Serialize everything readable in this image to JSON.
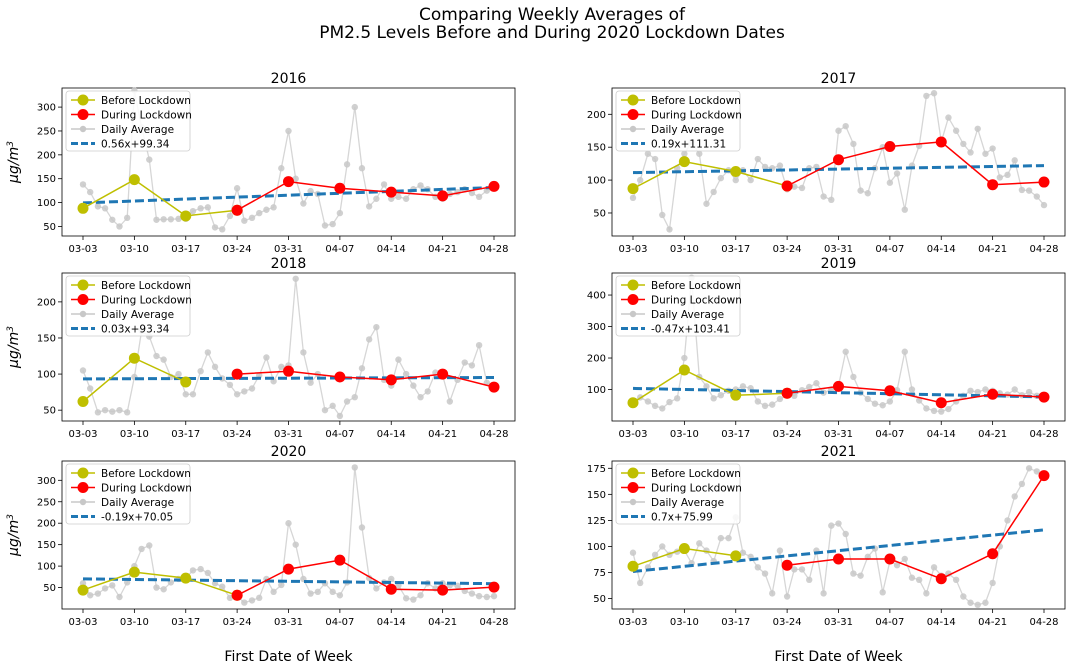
{
  "figure": {
    "title_line1": "Comparing Weekly Averages of",
    "title_line2": "PM2.5 Levels Before and During 2020 Lockdown Dates",
    "ylabel_main": "μg/m",
    "ylabel_sup": "3",
    "xlabel": "First Date of Week"
  },
  "colors": {
    "before": "#bfbf00",
    "during": "#ff0000",
    "daily": "#c8c8c8",
    "trend": "#1f77b4"
  },
  "chart_data": [
    {
      "type": "line",
      "title": "2016",
      "categories": [
        "03-03",
        "03-10",
        "03-17",
        "03-24",
        "03-31",
        "04-07",
        "04-14",
        "04-21",
        "04-28"
      ],
      "ylim": [
        30,
        340
      ],
      "yticks": [
        50,
        100,
        150,
        200,
        250,
        300
      ],
      "series": [
        {
          "name": "Before Lockdown",
          "x": [
            0,
            1,
            2,
            3
          ],
          "values": [
            88,
            148,
            72,
            84
          ]
        },
        {
          "name": "During Lockdown",
          "x": [
            3,
            4,
            5,
            6,
            7,
            8
          ],
          "values": [
            84,
            144,
            130,
            122,
            114,
            134
          ]
        },
        {
          "name": "Daily Average",
          "x": [
            0,
            0.14,
            0.29,
            0.43,
            0.57,
            0.71,
            0.86,
            1,
            1.14,
            1.29,
            1.43,
            1.57,
            1.71,
            1.86,
            2,
            2.14,
            2.29,
            2.43,
            2.57,
            2.71,
            2.86,
            3,
            3.14,
            3.29,
            3.43,
            3.57,
            3.71,
            3.86,
            4,
            4.14,
            4.29,
            4.43,
            4.57,
            4.71,
            4.86,
            5,
            5.14,
            5.29,
            5.43,
            5.57,
            5.71,
            5.86,
            6,
            6.14,
            6.29,
            6.43,
            6.57,
            6.71,
            6.86,
            7,
            7.14,
            7.29,
            7.43,
            7.57,
            7.71,
            7.86,
            8
          ],
          "values": [
            138,
            122,
            92,
            88,
            64,
            50,
            68,
            335,
            258,
            190,
            64,
            65,
            65,
            66,
            66,
            82,
            88,
            90,
            48,
            44,
            72,
            130,
            62,
            68,
            78,
            85,
            90,
            172,
            250,
            150,
            98,
            124,
            118,
            52,
            55,
            78,
            180,
            300,
            172,
            92,
            108,
            138,
            108,
            112,
            108,
            128,
            136,
            128,
            112,
            108,
            118,
            122,
            128,
            120,
            112,
            125,
            138
          ]
        },
        {
          "name": "0.56x+99.34",
          "x": [
            0,
            8
          ],
          "values": [
            99.34,
            131.6
          ]
        }
      ]
    },
    {
      "type": "line",
      "title": "2017",
      "categories": [
        "03-03",
        "03-10",
        "03-17",
        "03-24",
        "03-31",
        "04-07",
        "04-14",
        "04-21",
        "04-28"
      ],
      "ylim": [
        15,
        240
      ],
      "yticks": [
        50,
        100,
        150,
        200
      ],
      "series": [
        {
          "name": "Before Lockdown",
          "x": [
            0,
            1,
            2,
            3
          ],
          "values": [
            87,
            128,
            113,
            91
          ]
        },
        {
          "name": "During Lockdown",
          "x": [
            3,
            4,
            5,
            6,
            7,
            8
          ],
          "values": [
            91,
            131,
            151,
            158,
            93,
            97
          ]
        },
        {
          "name": "Daily Average",
          "x": [
            0,
            0.14,
            0.29,
            0.43,
            0.57,
            0.71,
            0.86,
            1,
            1.14,
            1.29,
            1.43,
            1.57,
            1.71,
            1.86,
            2,
            2.14,
            2.29,
            2.43,
            2.57,
            2.71,
            2.86,
            3,
            3.14,
            3.29,
            3.43,
            3.57,
            3.71,
            3.86,
            4,
            4.14,
            4.29,
            4.43,
            4.57,
            4.71,
            4.86,
            5,
            5.14,
            5.29,
            5.43,
            5.57,
            5.71,
            5.86,
            6,
            6.14,
            6.29,
            6.43,
            6.57,
            6.71,
            6.86,
            7,
            7.14,
            7.29,
            7.43,
            7.57,
            7.71,
            7.86,
            8
          ],
          "values": [
            73,
            100,
            140,
            132,
            47,
            25,
            118,
            140,
            158,
            140,
            64,
            82,
            103,
            115,
            100,
            115,
            100,
            132,
            120,
            118,
            122,
            86,
            90,
            88,
            118,
            120,
            75,
            70,
            175,
            182,
            155,
            84,
            80,
            118,
            150,
            96,
            110,
            55,
            122,
            152,
            228,
            232,
            158,
            195,
            175,
            155,
            142,
            178,
            140,
            148,
            104,
            108,
            130,
            85,
            84,
            75,
            62
          ]
        },
        {
          "name": "0.19x+111.31",
          "x": [
            0,
            8
          ],
          "values": [
            111.31,
            122.0
          ]
        }
      ]
    },
    {
      "type": "line",
      "title": "2018",
      "categories": [
        "03-03",
        "03-10",
        "03-17",
        "03-24",
        "03-31",
        "04-07",
        "04-14",
        "04-21",
        "04-28"
      ],
      "ylim": [
        35,
        240
      ],
      "yticks": [
        50,
        100,
        150,
        200
      ],
      "series": [
        {
          "name": "Before Lockdown",
          "x": [
            0,
            1,
            2
          ],
          "values": [
            62,
            122,
            89
          ]
        },
        {
          "name": "During Lockdown",
          "x": [
            3,
            4,
            5,
            6,
            7,
            8
          ],
          "values": [
            100,
            104,
            96,
            92,
            100,
            82
          ]
        },
        {
          "name": "Daily Average",
          "x": [
            0,
            0.14,
            0.29,
            0.43,
            0.57,
            0.71,
            0.86,
            1,
            1.14,
            1.29,
            1.43,
            1.57,
            1.71,
            1.86,
            2,
            2.14,
            2.29,
            2.43,
            2.57,
            2.71,
            2.86,
            3,
            3.14,
            3.29,
            3.43,
            3.57,
            3.71,
            3.86,
            4,
            4.14,
            4.29,
            4.43,
            4.57,
            4.71,
            4.86,
            5,
            5.14,
            5.29,
            5.43,
            5.57,
            5.71,
            5.86,
            6,
            6.14,
            6.29,
            6.43,
            6.57,
            6.71,
            6.86,
            7,
            7.14,
            7.29,
            7.43,
            7.57,
            7.71,
            7.86,
            8
          ],
          "values": [
            105,
            80,
            47,
            50,
            48,
            50,
            47,
            96,
            160,
            152,
            125,
            120,
            96,
            100,
            72,
            72,
            104,
            130,
            110,
            94,
            85,
            72,
            76,
            80,
            98,
            123,
            90,
            110,
            112,
            232,
            130,
            88,
            100,
            50,
            56,
            42,
            62,
            68,
            108,
            148,
            165,
            92,
            84,
            120,
            100,
            84,
            68,
            76,
            102,
            98,
            62,
            92,
            116,
            112,
            140,
            88,
            80
          ]
        },
        {
          "name": "0.03x+93.34",
          "x": [
            0,
            8
          ],
          "values": [
            93.34,
            95.2
          ]
        }
      ]
    },
    {
      "type": "line",
      "title": "2019",
      "categories": [
        "03-03",
        "03-10",
        "03-17",
        "03-24",
        "03-31",
        "04-07",
        "04-14",
        "04-21",
        "04-28"
      ],
      "ylim": [
        0,
        470
      ],
      "yticks": [
        100,
        200,
        300,
        400
      ],
      "series": [
        {
          "name": "Before Lockdown",
          "x": [
            0,
            1,
            2,
            3
          ],
          "values": [
            58,
            162,
            82,
            88
          ]
        },
        {
          "name": "During Lockdown",
          "x": [
            3,
            4,
            5,
            6,
            7,
            8
          ],
          "values": [
            88,
            110,
            96,
            58,
            85,
            76
          ]
        },
        {
          "name": "Daily Average",
          "x": [
            0,
            0.14,
            0.29,
            0.43,
            0.57,
            0.71,
            0.86,
            1,
            1.14,
            1.29,
            1.43,
            1.57,
            1.71,
            1.86,
            2,
            2.14,
            2.29,
            2.43,
            2.57,
            2.71,
            2.86,
            3,
            3.14,
            3.29,
            3.43,
            3.57,
            3.71,
            3.86,
            4,
            4.14,
            4.29,
            4.43,
            4.57,
            4.71,
            4.86,
            5,
            5.14,
            5.29,
            5.43,
            5.57,
            5.71,
            5.86,
            6,
            6.14,
            6.29,
            6.43,
            6.57,
            6.71,
            6.86,
            7,
            7.14,
            7.29,
            7.43,
            7.57,
            7.71,
            7.86,
            8
          ],
          "values": [
            60,
            75,
            62,
            48,
            40,
            60,
            72,
            200,
            455,
            140,
            110,
            72,
            82,
            96,
            100,
            110,
            104,
            62,
            48,
            52,
            70,
            82,
            80,
            98,
            108,
            120,
            90,
            100,
            112,
            220,
            140,
            90,
            70,
            55,
            50,
            62,
            98,
            220,
            100,
            65,
            40,
            32,
            30,
            38,
            62,
            80,
            96,
            92,
            100,
            96,
            88,
            84,
            100,
            82,
            92,
            80,
            76
          ]
        },
        {
          "name": "-0.47x+103.41",
          "x": [
            0,
            8
          ],
          "values": [
            103.41,
            76.6
          ]
        }
      ]
    },
    {
      "type": "line",
      "title": "2020",
      "categories": [
        "03-03",
        "03-10",
        "03-17",
        "03-24",
        "03-31",
        "04-07",
        "04-14",
        "04-21",
        "04-28"
      ],
      "ylim": [
        0,
        345
      ],
      "yticks": [
        50,
        100,
        150,
        200,
        250,
        300
      ],
      "series": [
        {
          "name": "Before Lockdown",
          "x": [
            0,
            1,
            2,
            3
          ],
          "values": [
            44,
            86,
            72,
            32
          ]
        },
        {
          "name": "During Lockdown",
          "x": [
            3,
            4,
            5,
            6,
            7,
            8
          ],
          "values": [
            32,
            93,
            114,
            46,
            44,
            51
          ]
        },
        {
          "name": "Daily Average",
          "x": [
            0,
            0.14,
            0.29,
            0.43,
            0.57,
            0.71,
            0.86,
            1,
            1.14,
            1.29,
            1.43,
            1.57,
            1.71,
            1.86,
            2,
            2.14,
            2.29,
            2.43,
            2.57,
            2.71,
            2.86,
            3,
            3.14,
            3.29,
            3.43,
            3.57,
            3.71,
            3.86,
            4,
            4.14,
            4.29,
            4.43,
            4.57,
            4.71,
            4.86,
            5,
            5.14,
            5.29,
            5.43,
            5.57,
            5.71,
            5.86,
            6,
            6.14,
            6.29,
            6.43,
            6.57,
            6.71,
            6.86,
            7,
            7.14,
            7.29,
            7.43,
            7.57,
            7.71,
            7.86,
            8
          ],
          "values": [
            60,
            32,
            36,
            48,
            55,
            28,
            62,
            100,
            140,
            148,
            50,
            46,
            62,
            70,
            72,
            90,
            93,
            84,
            60,
            52,
            26,
            30,
            15,
            20,
            26,
            70,
            40,
            56,
            200,
            150,
            70,
            36,
            40,
            60,
            40,
            32,
            62,
            330,
            190,
            72,
            48,
            62,
            70,
            55,
            25,
            22,
            32,
            60,
            48,
            60,
            55,
            54,
            42,
            36,
            30,
            28,
            30
          ]
        },
        {
          "name": "-0.19x+70.05",
          "x": [
            0,
            8
          ],
          "values": [
            70.05,
            59.0
          ]
        }
      ]
    },
    {
      "type": "line",
      "title": "2021",
      "categories": [
        "03-03",
        "03-10",
        "03-17",
        "03-24",
        "03-31",
        "04-07",
        "04-14",
        "04-21",
        "04-28"
      ],
      "ylim": [
        40,
        182
      ],
      "yticks": [
        50,
        75,
        100,
        125,
        150,
        175
      ],
      "series": [
        {
          "name": "Before Lockdown",
          "x": [
            0,
            1,
            2
          ],
          "values": [
            81,
            98,
            91
          ]
        },
        {
          "name": "During Lockdown",
          "x": [
            3,
            4,
            5,
            6,
            7,
            8
          ],
          "values": [
            82,
            88,
            88,
            69,
            93,
            168
          ]
        },
        {
          "name": "Daily Average",
          "x": [
            0,
            0.14,
            0.29,
            0.43,
            0.57,
            0.71,
            0.86,
            1,
            1.14,
            1.29,
            1.43,
            1.57,
            1.71,
            1.86,
            2,
            2.14,
            2.29,
            2.43,
            2.57,
            2.71,
            2.86,
            3,
            3.14,
            3.29,
            3.43,
            3.57,
            3.71,
            3.86,
            4,
            4.14,
            4.29,
            4.43,
            4.57,
            4.71,
            4.86,
            5,
            5.14,
            5.29,
            5.43,
            5.57,
            5.71,
            5.86,
            6,
            6.14,
            6.29,
            6.43,
            6.57,
            6.71,
            6.86,
            7,
            7.14,
            7.29,
            7.43,
            7.57,
            7.71,
            7.86,
            8
          ],
          "values": [
            94,
            65,
            80,
            92,
            100,
            92,
            95,
            96,
            84,
            103,
            96,
            86,
            108,
            108,
            128,
            94,
            90,
            80,
            74,
            55,
            96,
            52,
            78,
            78,
            68,
            96,
            55,
            120,
            122,
            112,
            74,
            72,
            90,
            98,
            56,
            86,
            82,
            88,
            70,
            68,
            55,
            80,
            72,
            74,
            68,
            52,
            46,
            44,
            46,
            65,
            100,
            125,
            148,
            160,
            175,
            172,
            168
          ]
        },
        {
          "name": "0.7x+75.99",
          "x": [
            0,
            8
          ],
          "values": [
            75.99,
            115.9
          ]
        }
      ]
    }
  ]
}
